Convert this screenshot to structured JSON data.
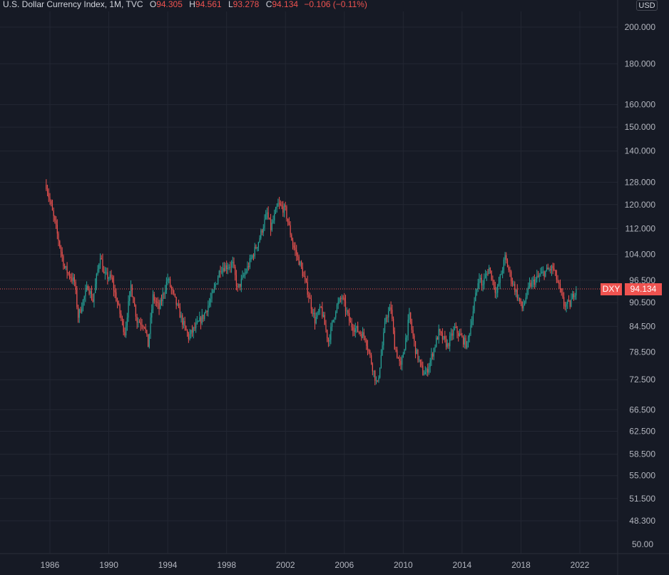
{
  "header": {
    "title": "U.S. Dollar Currency Index, 1M, TVC",
    "open_label": "O",
    "open": "94.305",
    "high_label": "H",
    "high": "94.561",
    "low_label": "L",
    "low": "93.278",
    "close_label": "C",
    "close": "94.134",
    "change": "−0.106 (−0.11%)"
  },
  "currency": "USD",
  "symbol_badge": "DXY",
  "last_price_label": "94.134",
  "colors": {
    "background": "#161a25",
    "up": "#26a69a",
    "down": "#ef5350",
    "grid": "#232733",
    "text": "#d1d4dc"
  },
  "chart_data": {
    "type": "candlestick",
    "interval": "1M",
    "y_scale": "log",
    "ylim": [
      45.9,
      210
    ],
    "xlim": [
      "1985-06",
      "2023-06"
    ],
    "y_ticks": [
      "200.000",
      "180.000",
      "160.000",
      "150.000",
      "140.000",
      "128.000",
      "120.000",
      "112.000",
      "104.000",
      "96.500",
      "90.500",
      "84.500",
      "78.500",
      "72.500",
      "66.500",
      "62.500",
      "58.500",
      "55.000",
      "51.500",
      "48.300"
    ],
    "sub_pane_tick": "50.00",
    "x_ticks": [
      "1986",
      "1990",
      "1994",
      "1998",
      "2002",
      "2006",
      "2010",
      "2014",
      "2018",
      "2022"
    ],
    "last_price": 94.134,
    "path": [
      [
        "1985-10",
        127
      ],
      [
        "1986-06",
        112
      ],
      [
        "1987-01",
        100
      ],
      [
        "1987-09",
        96
      ],
      [
        "1987-12",
        87
      ],
      [
        "1988-08",
        95
      ],
      [
        "1988-12",
        91
      ],
      [
        "1989-06",
        104
      ],
      [
        "1989-09",
        98
      ],
      [
        "1990-03",
        97
      ],
      [
        "1990-09",
        89
      ],
      [
        "1991-02",
        83
      ],
      [
        "1991-07",
        95
      ],
      [
        "1991-12",
        86
      ],
      [
        "1992-06",
        85
      ],
      [
        "1992-09",
        80
      ],
      [
        "1993-01",
        92
      ],
      [
        "1993-06",
        89
      ],
      [
        "1994-01",
        97
      ],
      [
        "1994-06",
        92
      ],
      [
        "1995-03",
        84
      ],
      [
        "1995-06",
        82
      ],
      [
        "1996-06",
        87
      ],
      [
        "1997-01",
        92
      ],
      [
        "1997-08",
        100
      ],
      [
        "1998-06",
        101
      ],
      [
        "1998-10",
        94
      ],
      [
        "1999-06",
        100
      ],
      [
        "2000-03",
        108
      ],
      [
        "2000-10",
        117
      ],
      [
        "2001-01",
        112
      ],
      [
        "2001-07",
        120
      ],
      [
        "2002-01",
        118
      ],
      [
        "2002-07",
        107
      ],
      [
        "2003-01",
        101
      ],
      [
        "2003-06",
        95
      ],
      [
        "2004-01",
        86
      ],
      [
        "2004-06",
        89
      ],
      [
        "2004-12",
        81
      ],
      [
        "2005-06",
        89
      ],
      [
        "2005-11",
        92
      ],
      [
        "2006-06",
        85
      ],
      [
        "2007-06",
        82
      ],
      [
        "2008-03",
        72
      ],
      [
        "2008-04",
        71.5
      ],
      [
        "2008-11",
        87
      ],
      [
        "2009-03",
        89
      ],
      [
        "2009-06",
        80
      ],
      [
        "2009-11",
        75
      ],
      [
        "2010-06",
        87
      ],
      [
        "2010-11",
        79
      ],
      [
        "2011-05",
        74
      ],
      [
        "2011-08",
        74
      ],
      [
        "2012-06",
        83
      ],
      [
        "2013-01",
        80
      ],
      [
        "2013-07",
        84
      ],
      [
        "2014-05",
        80
      ],
      [
        "2015-03",
        98
      ],
      [
        "2015-05",
        95
      ],
      [
        "2015-11",
        100
      ],
      [
        "2016-05",
        93
      ],
      [
        "2016-12",
        103
      ],
      [
        "2017-06",
        96
      ],
      [
        "2018-02",
        89
      ],
      [
        "2018-08",
        95
      ],
      [
        "2019-05",
        98
      ],
      [
        "2019-09",
        99
      ],
      [
        "2020-03",
        100
      ],
      [
        "2020-06",
        97
      ],
      [
        "2020-12",
        90
      ],
      [
        "2021-05",
        90
      ],
      [
        "2021-08",
        93
      ],
      [
        "2021-10",
        94.134
      ]
    ]
  }
}
